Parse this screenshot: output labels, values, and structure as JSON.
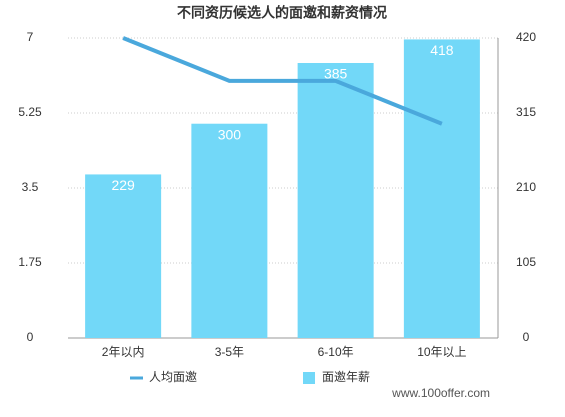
{
  "chart_data": {
    "type": "combo",
    "title": "不同资历候选人的面邀和薪资情况",
    "categories": [
      "2年以内",
      "3-5年",
      "6-10年",
      "10年以上"
    ],
    "series": [
      {
        "name": "人均面邀",
        "type": "line",
        "color": "#4aa8dc",
        "values": [
          7,
          6,
          6,
          5
        ]
      },
      {
        "name": "面邀年薪",
        "type": "bar",
        "axis": "y2",
        "color": "#72d8f8",
        "values": [
          229,
          300,
          385,
          418
        ]
      }
    ],
    "ylim": [
      0,
      7
    ],
    "yticks": [
      0,
      1.75,
      3.5,
      5.25,
      7
    ],
    "y2lim": [
      0,
      420
    ],
    "y2ticks": [
      0,
      105,
      210,
      315,
      420
    ],
    "grid": true,
    "legend": "bottom",
    "annotation": "www.100offer.com"
  }
}
